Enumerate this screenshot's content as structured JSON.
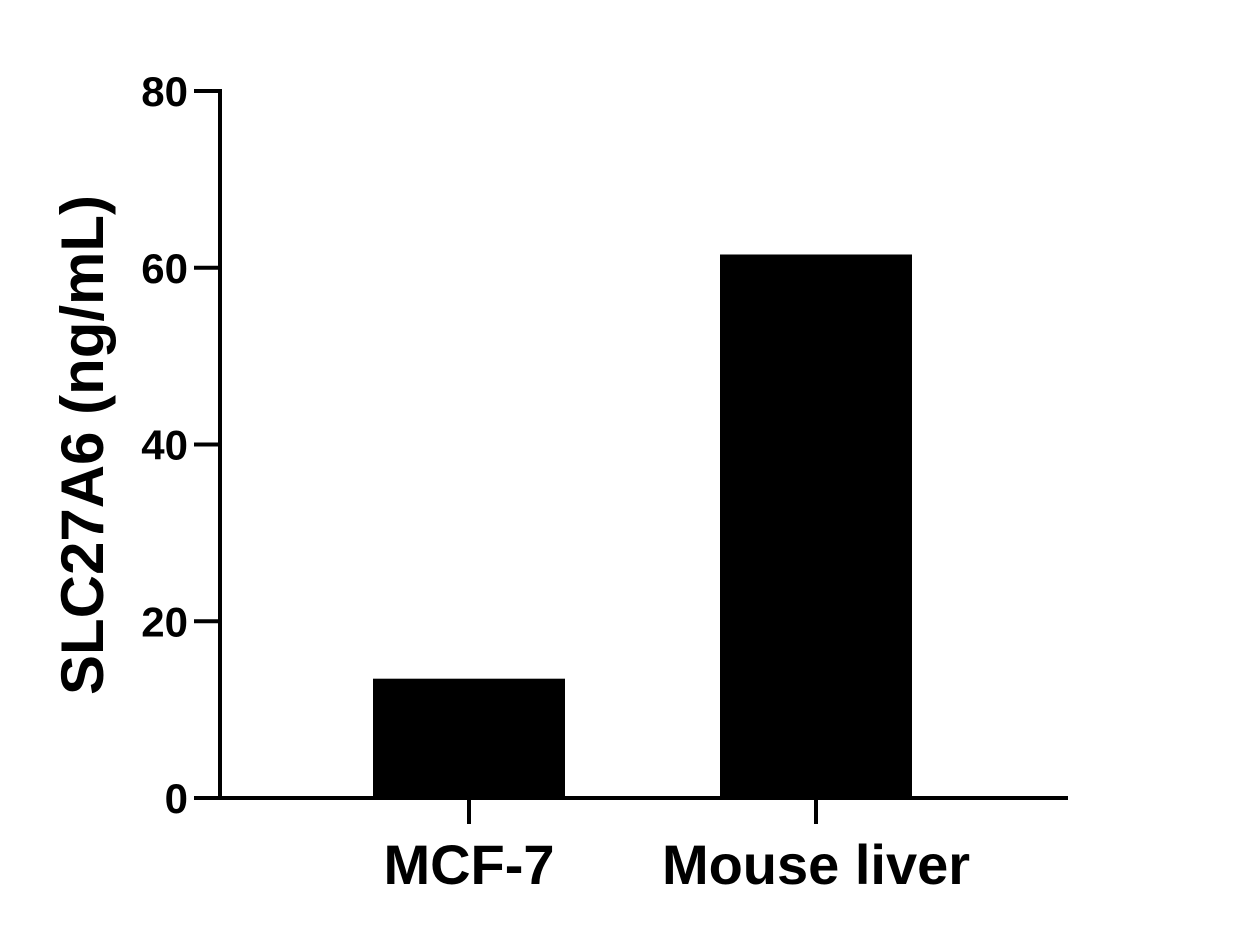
{
  "chart_data": {
    "type": "bar",
    "categories": [
      "MCF-7",
      "Mouse liver"
    ],
    "values": [
      13.5,
      61.5
    ],
    "title": "",
    "xlabel": "",
    "ylabel": "SLC27A6 (ng/mL)",
    "ylim": [
      0,
      80
    ],
    "yticks": [
      "0",
      "20",
      "40",
      "60",
      "80"
    ],
    "grid": false,
    "legend": "none",
    "colors": {
      "bar": "#000000",
      "axis": "#000000"
    }
  }
}
